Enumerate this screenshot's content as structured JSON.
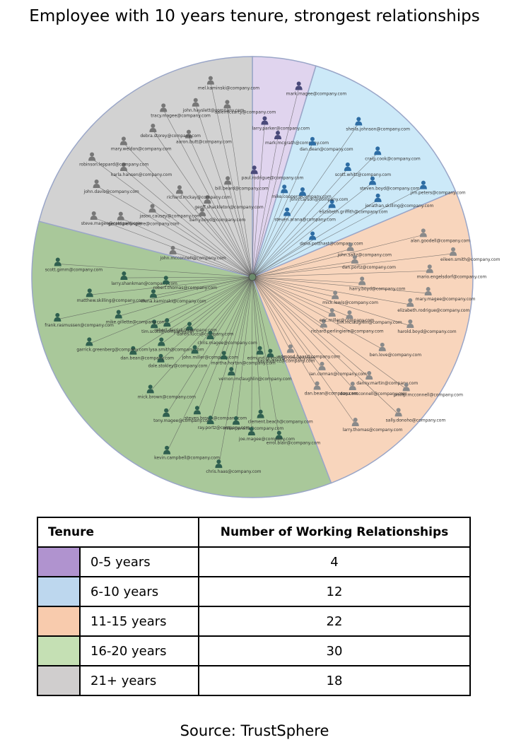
{
  "title": "Employee with 10 years tenure, strongest relationships",
  "source": "Source: TrustSphere",
  "chart_data": {
    "type": "pie",
    "title": "Employee with 10 years tenure, strongest relationships",
    "categories": [
      "0-5 years",
      "6-10 years",
      "11-15 years",
      "16-20 years",
      "21+ years"
    ],
    "values": [
      4,
      12,
      22,
      30,
      18
    ],
    "colors": [
      "#e0d4ee",
      "#cce9f8",
      "#f8d5bc",
      "#a9c89a",
      "#d2d2d2"
    ],
    "node_colors": [
      "#4a4a7a",
      "#2e6da4",
      "#8a8a8a",
      "#2f5f4f",
      "#777777"
    ]
  },
  "legend": {
    "headers": [
      "Tenure",
      "Number of Working Relationships"
    ],
    "rows": [
      {
        "color": "#b093cf",
        "label": "0-5 years",
        "value": "4"
      },
      {
        "color": "#bdd7ee",
        "label": "6-10 years",
        "value": "12"
      },
      {
        "color": "#f8cbad",
        "label": "11-15 years",
        "value": "22"
      },
      {
        "color": "#c5e0b4",
        "label": "16-20 years",
        "value": "30"
      },
      {
        "color": "#d0cece",
        "label": "21+ years",
        "value": "18"
      }
    ]
  },
  "nodes": [
    [
      "paul.rodrigue@company.com",
      "mark.mcgrath@company.com",
      "larry.parker@company.com",
      "mark.magee@company.com"
    ],
    [
      "mike.cooper@company.com",
      "elizabeth.griffith@company.com",
      "john.carson@company.com",
      "jonathan.skilling@company.com",
      "scott.whitt@company.com",
      "dan.dean@company.com",
      "steven.boyd@company.com",
      "sheila.johnson@company.com",
      "jim.peters@company.com",
      "craig.cook@company.com",
      "steven.arana@company.com",
      "dana.potthast@company.com"
    ],
    [
      "john.saltz@company.com",
      "richard.perlingiere@company.com",
      "harry.boyd@company.com",
      "ian.corman@company.com",
      "tim.mclaughlin@company.com",
      "dan.portz@company.com",
      "danny.martin@company.com",
      "elizabeth.rodrigue@company.com",
      "dan.bean@company.com",
      "ben.love@company.com",
      "mario.engelsdorf@company.com",
      "dana.mcconnell@company.com",
      "harold.boyd@company.com",
      "alan.goodell@company.com",
      "phillip.mcconnell@company.com",
      "mary.magee@company.com",
      "larry.thomas@company.com",
      "eric.miller@company.com",
      "eileen.smith@company.com",
      "sally.donoho@company.com",
      "mick.lewis@company.com",
      "edmond.haas@company.com"
    ],
    [
      "kay.alvarez@company.com",
      "lysa.smith@company.com",
      "vernon.mclaughlin@company.com",
      "elena.kaminski@company.com",
      "john.miller@company.com",
      "clement.beach@company.com",
      "tim.scott@company.com",
      "steven.brown@company.com",
      "larry.shankman@company.com",
      "dale.stokley@company.com",
      "mike.pereira@company.com",
      "mike.gillette@company.com",
      "tony.magee@company.com",
      "errol.blair@company.com",
      "dan.bean@company.com",
      "ray.portz@company.com",
      "matthew.skilling@company.com",
      "mick.brown@company.com",
      "joe.magee@company.com",
      "garrick.greenberg@company.com",
      "kevin.campbell@company.com",
      "scott.gimm@company.com",
      "daren.lucci@company.com",
      "chris.haas@company.com",
      "frank.rasmussen@company.com",
      "chris.magee@company.com",
      "edmund.grigsby@company.com",
      "robert.derrick@company.com",
      "martha.horton@company.com",
      "robert.thomas@company.com"
    ],
    [
      "john.mcconnell@company.com",
      "geoff.shackleton@company.com",
      "jason.causey@company.com",
      "bill.beard@company.com",
      "richard.mckay@company.com",
      "gerald.perlingiere@company.com",
      "aaron.butt@company.com",
      "karla.hansen@company.com",
      "dale.mccarty@company.com",
      "debra.storey@company.com",
      "john.davis@company.com",
      "john.hayslett@company.com",
      "mary.weldon@company.com",
      "steve.magee@company.com",
      "tracy.magee@company.com",
      "robinson.leppard@company.com",
      "mel.kaminski@company.com",
      "barry.boyd@company.com"
    ]
  ]
}
